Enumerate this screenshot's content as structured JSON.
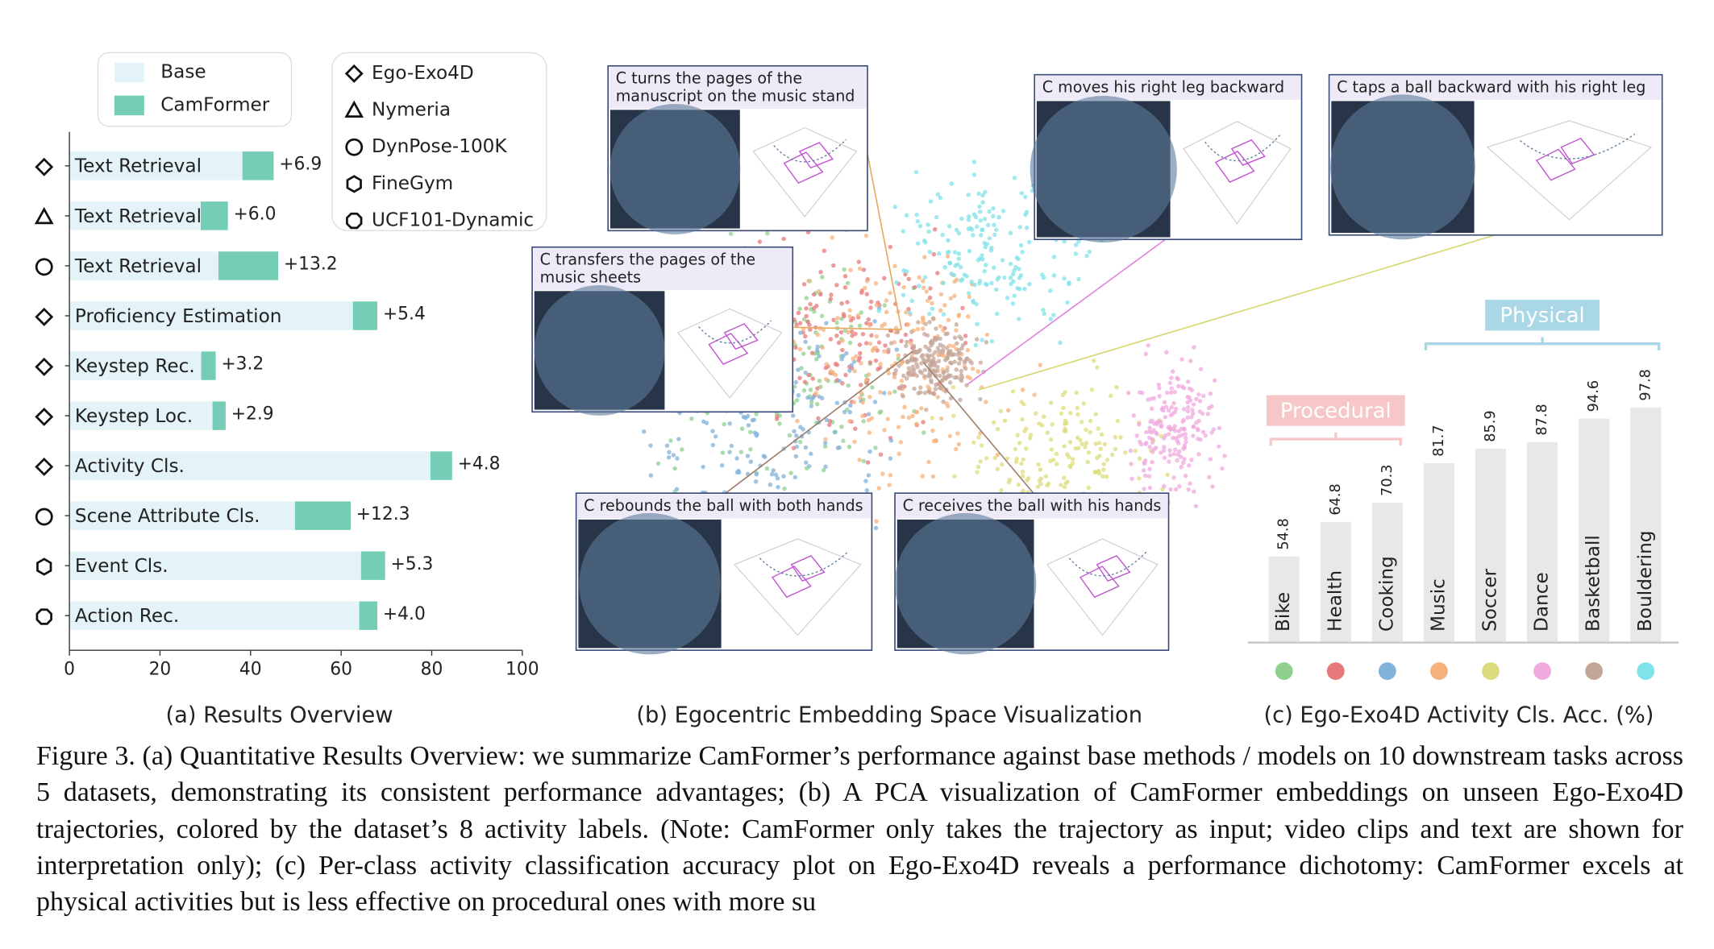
{
  "chart_data": [
    {
      "type": "hbar",
      "caption": "(a) Results Overview",
      "categories": [
        "Text Retrieval",
        "Text Retrieval",
        "Text Retrieval",
        "Proficiency Estimation",
        "Keystep Rec.",
        "Keystep Loc.",
        "Activity Cls.",
        "Scene Attribute Cls.",
        "Event Cls.",
        "Action Rec."
      ],
      "series": [
        {
          "name": "Base",
          "color": "#e3f3f8",
          "values": [
            38.2,
            29.0,
            32.9,
            62.6,
            29.1,
            31.6,
            79.7,
            49.8,
            64.4,
            64.0
          ]
        },
        {
          "name": "CamFormer",
          "color": "#74cdb4",
          "values": [
            6.9,
            6.0,
            13.2,
            5.4,
            3.2,
            2.9,
            4.8,
            12.3,
            5.3,
            4.0
          ],
          "value_labels": [
            "+6.9",
            "+6.0",
            "+13.2",
            "+5.4",
            "+3.2",
            "+2.9",
            "+4.8",
            "+12.3",
            "+5.3",
            "+4.0"
          ]
        }
      ],
      "datasets": [
        {
          "name": "Ego-Exo4D",
          "marker": "diamond"
        },
        {
          "name": "Nymeria",
          "marker": "triangle"
        },
        {
          "name": "DynPose-100K",
          "marker": "circle"
        },
        {
          "name": "FineGym",
          "marker": "hexagon"
        },
        {
          "name": "UCF101-Dynamic",
          "marker": "octagon"
        }
      ],
      "row_datasets": [
        "Ego-Exo4D",
        "Nymeria",
        "DynPose-100K",
        "Ego-Exo4D",
        "Ego-Exo4D",
        "Ego-Exo4D",
        "Ego-Exo4D",
        "DynPose-100K",
        "FineGym",
        "UCF101-Dynamic"
      ],
      "xlim": [
        0,
        100
      ],
      "xticks": [
        0,
        20,
        40,
        60,
        80,
        100
      ]
    },
    {
      "type": "bar",
      "caption": "(c) Ego-Exo4D Activity Cls. Acc. (%)",
      "categories": [
        "Bike",
        "Health",
        "Cooking",
        "Music",
        "Soccer",
        "Dance",
        "Basketball",
        "Bouldering"
      ],
      "values": [
        54.8,
        64.8,
        70.3,
        81.7,
        85.9,
        87.8,
        94.6,
        97.8
      ],
      "color": "#e8e8e8",
      "colors": [
        "#8fd08f",
        "#e57878",
        "#80b2da",
        "#f6b27c",
        "#dcdc7c",
        "#f0aade",
        "#c4a698",
        "#80e2ea"
      ],
      "groups": [
        {
          "label": "Procedural",
          "color": "#f7c6c6",
          "members": [
            "Bike",
            "Health",
            "Cooking"
          ]
        },
        {
          "label": "Physical",
          "color": "#a9d7e6",
          "members": [
            "Music",
            "Soccer",
            "Dance",
            "Basketball",
            "Bouldering"
          ]
        }
      ],
      "ylim": [
        30,
        100
      ]
    }
  ],
  "panel_b": {
    "caption": "(b) Egocentric Embedding Space Visualization",
    "annotations": [
      {
        "lines": [
          "C turns the pages of the",
          "manuscript on the music stand"
        ]
      },
      {
        "lines": [
          "C transfers the pages of the",
          "music sheets"
        ]
      },
      {
        "lines": [
          "C moves his right leg backward"
        ]
      },
      {
        "lines": [
          "C taps a ball backward with his right leg"
        ]
      },
      {
        "lines": [
          "C rebounds the ball with both hands"
        ]
      },
      {
        "lines": [
          "C receives the ball with his hands"
        ]
      }
    ]
  },
  "figure_caption": "Figure 3. (a) Quantitative Results Overview: we summarize CamFormer’s performance against base methods / models on 10 downstream tasks across 5 datasets, demonstrating its consistent performance advantages; (b) A PCA visualization of CamFormer embeddings on unseen Ego-Exo4D trajectories, colored by the dataset’s 8 activity labels. (Note: CamFormer only takes the trajectory as input; video clips and text are shown for interpretation only); (c) Per-class activity classification accuracy plot on Ego-Exo4D reveals a performance dichotomy: CamFormer excels at physical activities but is less effective on procedural ones with more su"
}
